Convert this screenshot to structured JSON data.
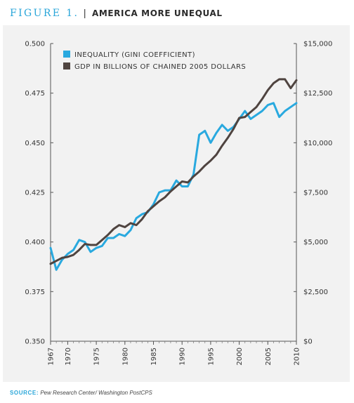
{
  "figure": {
    "label": "FIGURE 1.",
    "separator": "|",
    "title": "AMERICA MORE UNEQUAL"
  },
  "source": {
    "label": "SOURCE:",
    "text": "Pew Research Center/ Washington PostCPS"
  },
  "colors": {
    "inequality": "#29a9df",
    "gdp": "#4f4440",
    "accent": "#2aa6d9",
    "panel_bg": "#f2f2f2"
  },
  "chart_data": {
    "type": "line",
    "x": [
      1967,
      1968,
      1969,
      1970,
      1971,
      1972,
      1973,
      1974,
      1975,
      1976,
      1977,
      1978,
      1979,
      1980,
      1981,
      1982,
      1983,
      1984,
      1985,
      1986,
      1987,
      1988,
      1989,
      1990,
      1991,
      1992,
      1993,
      1994,
      1995,
      1996,
      1997,
      1998,
      1999,
      2000,
      2001,
      2002,
      2003,
      2004,
      2005,
      2006,
      2007,
      2008,
      2009,
      2010
    ],
    "x_ticks": [
      "1967",
      "1970",
      "1975",
      "1980",
      "1985",
      "1990",
      "1995",
      "2000",
      "2005",
      "2010"
    ],
    "x_tick_values": [
      1967,
      1970,
      1975,
      1980,
      1985,
      1990,
      1995,
      2000,
      2005,
      2010
    ],
    "xlim": [
      1967,
      2010
    ],
    "y_left": {
      "lim": [
        0.35,
        0.5
      ],
      "ticks": [
        "0.350",
        "0.375",
        "0.400",
        "0.425",
        "0.450",
        "0.475",
        "0.500"
      ],
      "tick_values": [
        0.35,
        0.375,
        0.4,
        0.425,
        0.45,
        0.475,
        0.5
      ]
    },
    "y_right": {
      "lim": [
        0,
        15000
      ],
      "ticks": [
        "$0",
        "$2,500",
        "$5,000",
        "$7,500",
        "$10,000",
        "$12,500",
        "$15,000"
      ],
      "tick_values": [
        0,
        2500,
        5000,
        7500,
        10000,
        12500,
        15000
      ]
    },
    "grid": false,
    "legend_position": "top-left",
    "series": [
      {
        "name": "INEQUALITY (GINI COEFFICIENT)",
        "axis": "left",
        "color": "#29a9df",
        "values": [
          0.397,
          0.386,
          0.391,
          0.394,
          0.396,
          0.401,
          0.4,
          0.395,
          0.397,
          0.398,
          0.402,
          0.402,
          0.404,
          0.403,
          0.406,
          0.412,
          0.414,
          0.415,
          0.419,
          0.425,
          0.426,
          0.426,
          0.431,
          0.428,
          0.428,
          0.434,
          0.454,
          0.456,
          0.45,
          0.455,
          0.459,
          0.456,
          0.458,
          0.462,
          0.466,
          0.462,
          0.464,
          0.466,
          0.469,
          0.47,
          0.463,
          0.466,
          0.468,
          0.47
        ]
      },
      {
        "name": "GDP IN BILLIONS OF CHAINED 2005 DOLLARS",
        "axis": "right",
        "color": "#4f4440",
        "values": [
          3900,
          4050,
          4200,
          4250,
          4350,
          4600,
          4900,
          4850,
          4850,
          5100,
          5350,
          5650,
          5850,
          5750,
          5950,
          5850,
          6150,
          6550,
          6800,
          7050,
          7250,
          7550,
          7800,
          8050,
          8000,
          8300,
          8550,
          8850,
          9100,
          9400,
          9850,
          10250,
          10700,
          11250,
          11300,
          11550,
          11800,
          12200,
          12650,
          13000,
          13200,
          13200,
          12750,
          13150
        ]
      }
    ]
  }
}
